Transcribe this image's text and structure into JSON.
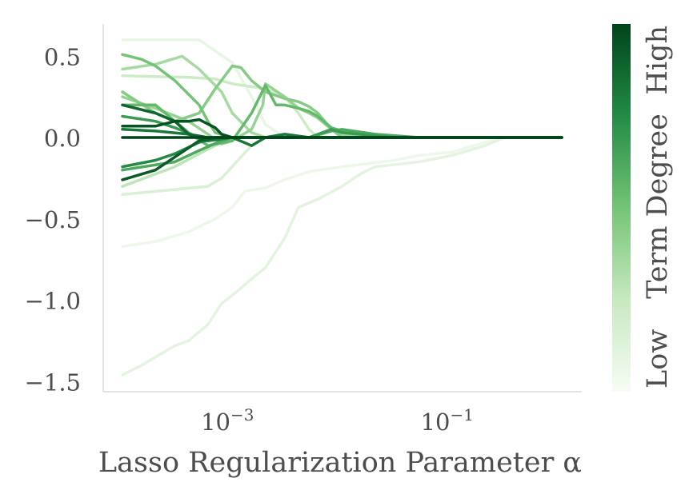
{
  "chart_data": {
    "type": "line",
    "xlabel": "Lasso Regularization Parameter α",
    "ylabel": "",
    "x_scale": "log",
    "xlim": [
      0.0001,
      1.0
    ],
    "ylim": [
      -1.55,
      0.7
    ],
    "x_ticks": [
      {
        "value": 0.001,
        "base": "10",
        "exp": "−3"
      },
      {
        "value": 0.1,
        "base": "10",
        "exp": "−1"
      }
    ],
    "y_ticks": [
      {
        "value": 0.5,
        "label": "0.5"
      },
      {
        "value": 0.0,
        "label": "0.0"
      },
      {
        "value": -0.5,
        "label": "−0.5"
      },
      {
        "value": -1.0,
        "label": "−1.0"
      },
      {
        "value": -1.5,
        "label": "−1.5"
      }
    ],
    "grid": false,
    "colorbar": {
      "label": "Term Degree",
      "low_label": "Low",
      "high_label": "High",
      "colormap": "Greens",
      "color_low": "#f7fcf5",
      "color_high": "#00441b"
    },
    "series": [
      {
        "level": 0.05,
        "points": [
          [
            0.0001,
            -0.67
          ],
          [
            0.0002,
            -0.64
          ],
          [
            0.0004,
            -0.58
          ],
          [
            0.0007,
            -0.5
          ],
          [
            0.001,
            -0.43
          ],
          [
            0.0013,
            -0.33
          ],
          [
            0.002,
            -0.31
          ],
          [
            0.003,
            -0.26
          ],
          [
            0.005,
            -0.21
          ],
          [
            0.01,
            -0.18
          ],
          [
            0.03,
            -0.14
          ],
          [
            0.05,
            -0.11
          ],
          [
            0.1,
            -0.09
          ],
          [
            0.2,
            -0.03
          ],
          [
            0.3,
            0.0
          ],
          [
            1.0,
            0.0
          ]
        ]
      },
      {
        "level": 0.08,
        "points": [
          [
            0.0001,
            0.6
          ],
          [
            0.0005,
            0.6
          ],
          [
            0.001,
            0.46
          ],
          [
            0.0015,
            0.25
          ],
          [
            0.002,
            0.08
          ],
          [
            0.003,
            0.0
          ],
          [
            1.0,
            0.0
          ]
        ]
      },
      {
        "level": 0.1,
        "points": [
          [
            0.0001,
            -1.46
          ],
          [
            0.00015,
            -1.4
          ],
          [
            0.0002,
            -1.35
          ],
          [
            0.0003,
            -1.28
          ],
          [
            0.0004,
            -1.25
          ],
          [
            0.0006,
            -1.15
          ],
          [
            0.0008,
            -1.02
          ],
          [
            0.001,
            -0.97
          ],
          [
            0.0015,
            -0.87
          ],
          [
            0.002,
            -0.8
          ],
          [
            0.003,
            -0.62
          ],
          [
            0.004,
            -0.43
          ],
          [
            0.006,
            -0.38
          ],
          [
            0.01,
            -0.3
          ],
          [
            0.015,
            -0.22
          ],
          [
            0.02,
            -0.18
          ],
          [
            0.05,
            -0.15
          ],
          [
            0.1,
            -0.11
          ],
          [
            0.2,
            -0.05
          ],
          [
            0.3,
            0.0
          ],
          [
            1.0,
            0.0
          ]
        ]
      },
      {
        "level": 0.15,
        "points": [
          [
            0.0001,
            -0.35
          ],
          [
            0.0003,
            -0.32
          ],
          [
            0.0006,
            -0.3
          ],
          [
            0.0008,
            -0.25
          ],
          [
            0.0012,
            -0.12
          ],
          [
            0.0015,
            -0.05
          ],
          [
            0.002,
            0.0
          ],
          [
            1.0,
            0.0
          ]
        ]
      },
      {
        "level": 0.22,
        "points": [
          [
            0.0001,
            0.38
          ],
          [
            0.0004,
            0.37
          ],
          [
            0.0007,
            0.36
          ],
          [
            0.001,
            0.33
          ],
          [
            0.002,
            0.3
          ],
          [
            0.003,
            0.25
          ],
          [
            0.004,
            0.15
          ],
          [
            0.005,
            0.05
          ],
          [
            0.006,
            0.0
          ],
          [
            1.0,
            0.0
          ]
        ]
      },
      {
        "level": 0.28,
        "points": [
          [
            0.0001,
            -0.3
          ],
          [
            0.0003,
            -0.18
          ],
          [
            0.0005,
            -0.1
          ],
          [
            0.0008,
            -0.03
          ],
          [
            0.001,
            0.0
          ],
          [
            1.0,
            0.0
          ]
        ]
      },
      {
        "level": 0.35,
        "points": [
          [
            0.0001,
            0.42
          ],
          [
            0.0002,
            0.45
          ],
          [
            0.00035,
            0.5
          ],
          [
            0.0005,
            0.42
          ],
          [
            0.0008,
            0.28
          ],
          [
            0.001,
            0.15
          ],
          [
            0.0015,
            0.03
          ],
          [
            0.002,
            0.0
          ],
          [
            1.0,
            0.0
          ]
        ]
      },
      {
        "level": 0.4,
        "points": [
          [
            0.0001,
            0.25
          ],
          [
            0.0002,
            0.18
          ],
          [
            0.0004,
            0.1
          ],
          [
            0.0006,
            0.02
          ],
          [
            0.0008,
            -0.04
          ],
          [
            0.001,
            -0.02
          ],
          [
            0.0015,
            0.05
          ],
          [
            0.0019,
            0.2
          ],
          [
            0.002,
            0.33
          ],
          [
            0.003,
            0.25
          ],
          [
            0.004,
            0.18
          ],
          [
            0.005,
            0.15
          ],
          [
            0.006,
            0.12
          ],
          [
            0.008,
            0.05
          ],
          [
            0.01,
            0.02
          ],
          [
            0.02,
            0.0
          ],
          [
            1.0,
            0.0
          ]
        ]
      },
      {
        "level": 0.45,
        "points": [
          [
            0.0001,
            0.28
          ],
          [
            0.0002,
            0.15
          ],
          [
            0.0003,
            0.1
          ],
          [
            0.0005,
            0.15
          ],
          [
            0.0007,
            0.3
          ],
          [
            0.001,
            0.44
          ],
          [
            0.0012,
            0.43
          ],
          [
            0.0015,
            0.35
          ],
          [
            0.002,
            0.28
          ],
          [
            0.003,
            0.24
          ],
          [
            0.004,
            0.22
          ],
          [
            0.005,
            0.19
          ],
          [
            0.006,
            0.15
          ],
          [
            0.008,
            0.05
          ],
          [
            0.01,
            0.0
          ],
          [
            1.0,
            0.0
          ]
        ]
      },
      {
        "level": 0.5,
        "points": [
          [
            0.0001,
            0.51
          ],
          [
            0.00015,
            0.48
          ],
          [
            0.0002,
            0.44
          ],
          [
            0.0003,
            0.35
          ],
          [
            0.0005,
            0.2
          ],
          [
            0.0006,
            0.1
          ],
          [
            0.0007,
            0.03
          ],
          [
            0.001,
            0.0
          ],
          [
            1.0,
            0.0
          ]
        ]
      },
      {
        "level": 0.55,
        "points": [
          [
            0.0001,
            0.2
          ],
          [
            0.0002,
            0.2
          ],
          [
            0.0003,
            0.1
          ],
          [
            0.0004,
            0.03
          ],
          [
            0.0006,
            -0.05
          ],
          [
            0.001,
            -0.02
          ],
          [
            0.0015,
            0.15
          ],
          [
            0.002,
            0.32
          ],
          [
            0.0025,
            0.2
          ],
          [
            0.003,
            0.2
          ],
          [
            0.004,
            0.18
          ],
          [
            0.005,
            0.16
          ],
          [
            0.006,
            0.13
          ],
          [
            0.008,
            0.06
          ],
          [
            0.01,
            0.04
          ],
          [
            0.02,
            0.02
          ],
          [
            0.03,
            0.0
          ],
          [
            1.0,
            0.0
          ]
        ]
      },
      {
        "level": 0.62,
        "points": [
          [
            0.0001,
            -0.2
          ],
          [
            0.0003,
            -0.15
          ],
          [
            0.0005,
            -0.08
          ],
          [
            0.0008,
            -0.02
          ],
          [
            0.001,
            0.0
          ],
          [
            0.005,
            0.0
          ],
          [
            0.008,
            0.04
          ],
          [
            0.01,
            0.05
          ],
          [
            0.02,
            0.02
          ],
          [
            0.05,
            0.0
          ],
          [
            1.0,
            0.0
          ]
        ]
      },
      {
        "level": 0.68,
        "points": [
          [
            0.0001,
            0.13
          ],
          [
            0.0002,
            0.1
          ],
          [
            0.0003,
            0.06
          ],
          [
            0.0005,
            0.0
          ],
          [
            0.001,
            0.0
          ],
          [
            0.005,
            0.0
          ],
          [
            0.008,
            0.05
          ],
          [
            0.01,
            0.03
          ],
          [
            0.03,
            0.0
          ],
          [
            1.0,
            0.0
          ]
        ]
      },
      {
        "level": 0.75,
        "points": [
          [
            0.0001,
            -0.18
          ],
          [
            0.0002,
            -0.14
          ],
          [
            0.0003,
            -0.1
          ],
          [
            0.0005,
            -0.03
          ],
          [
            0.0008,
            0.0
          ],
          [
            1.0,
            0.0
          ]
        ]
      },
      {
        "level": 0.82,
        "points": [
          [
            0.0001,
            0.05
          ],
          [
            0.0002,
            0.04
          ],
          [
            0.0004,
            0.02
          ],
          [
            0.0006,
            -0.02
          ],
          [
            0.001,
            0.0
          ],
          [
            0.0015,
            -0.05
          ],
          [
            0.002,
            0.0
          ],
          [
            0.003,
            0.02
          ],
          [
            0.005,
            0.0
          ],
          [
            1.0,
            0.0
          ]
        ]
      },
      {
        "level": 0.88,
        "points": [
          [
            0.0001,
            0.2
          ],
          [
            0.0002,
            0.15
          ],
          [
            0.0003,
            0.1
          ],
          [
            0.0004,
            0.02
          ],
          [
            0.0006,
            0.0
          ],
          [
            1.0,
            0.0
          ]
        ]
      },
      {
        "level": 0.92,
        "points": [
          [
            0.0001,
            -0.26
          ],
          [
            0.0002,
            -0.2
          ],
          [
            0.0003,
            -0.12
          ],
          [
            0.0005,
            -0.02
          ],
          [
            0.0007,
            0.0
          ],
          [
            1.0,
            0.0
          ]
        ]
      },
      {
        "level": 0.95,
        "points": [
          [
            0.0001,
            0.07
          ],
          [
            0.0002,
            0.07
          ],
          [
            0.0003,
            0.1
          ],
          [
            0.0004,
            0.1
          ],
          [
            0.0005,
            0.11
          ],
          [
            0.0007,
            0.06
          ],
          [
            0.0008,
            0.02
          ],
          [
            0.001,
            0.0
          ],
          [
            1.0,
            0.0
          ]
        ]
      },
      {
        "level": 1.0,
        "points": [
          [
            0.0001,
            0.0
          ],
          [
            1.0,
            0.0
          ]
        ]
      }
    ]
  }
}
